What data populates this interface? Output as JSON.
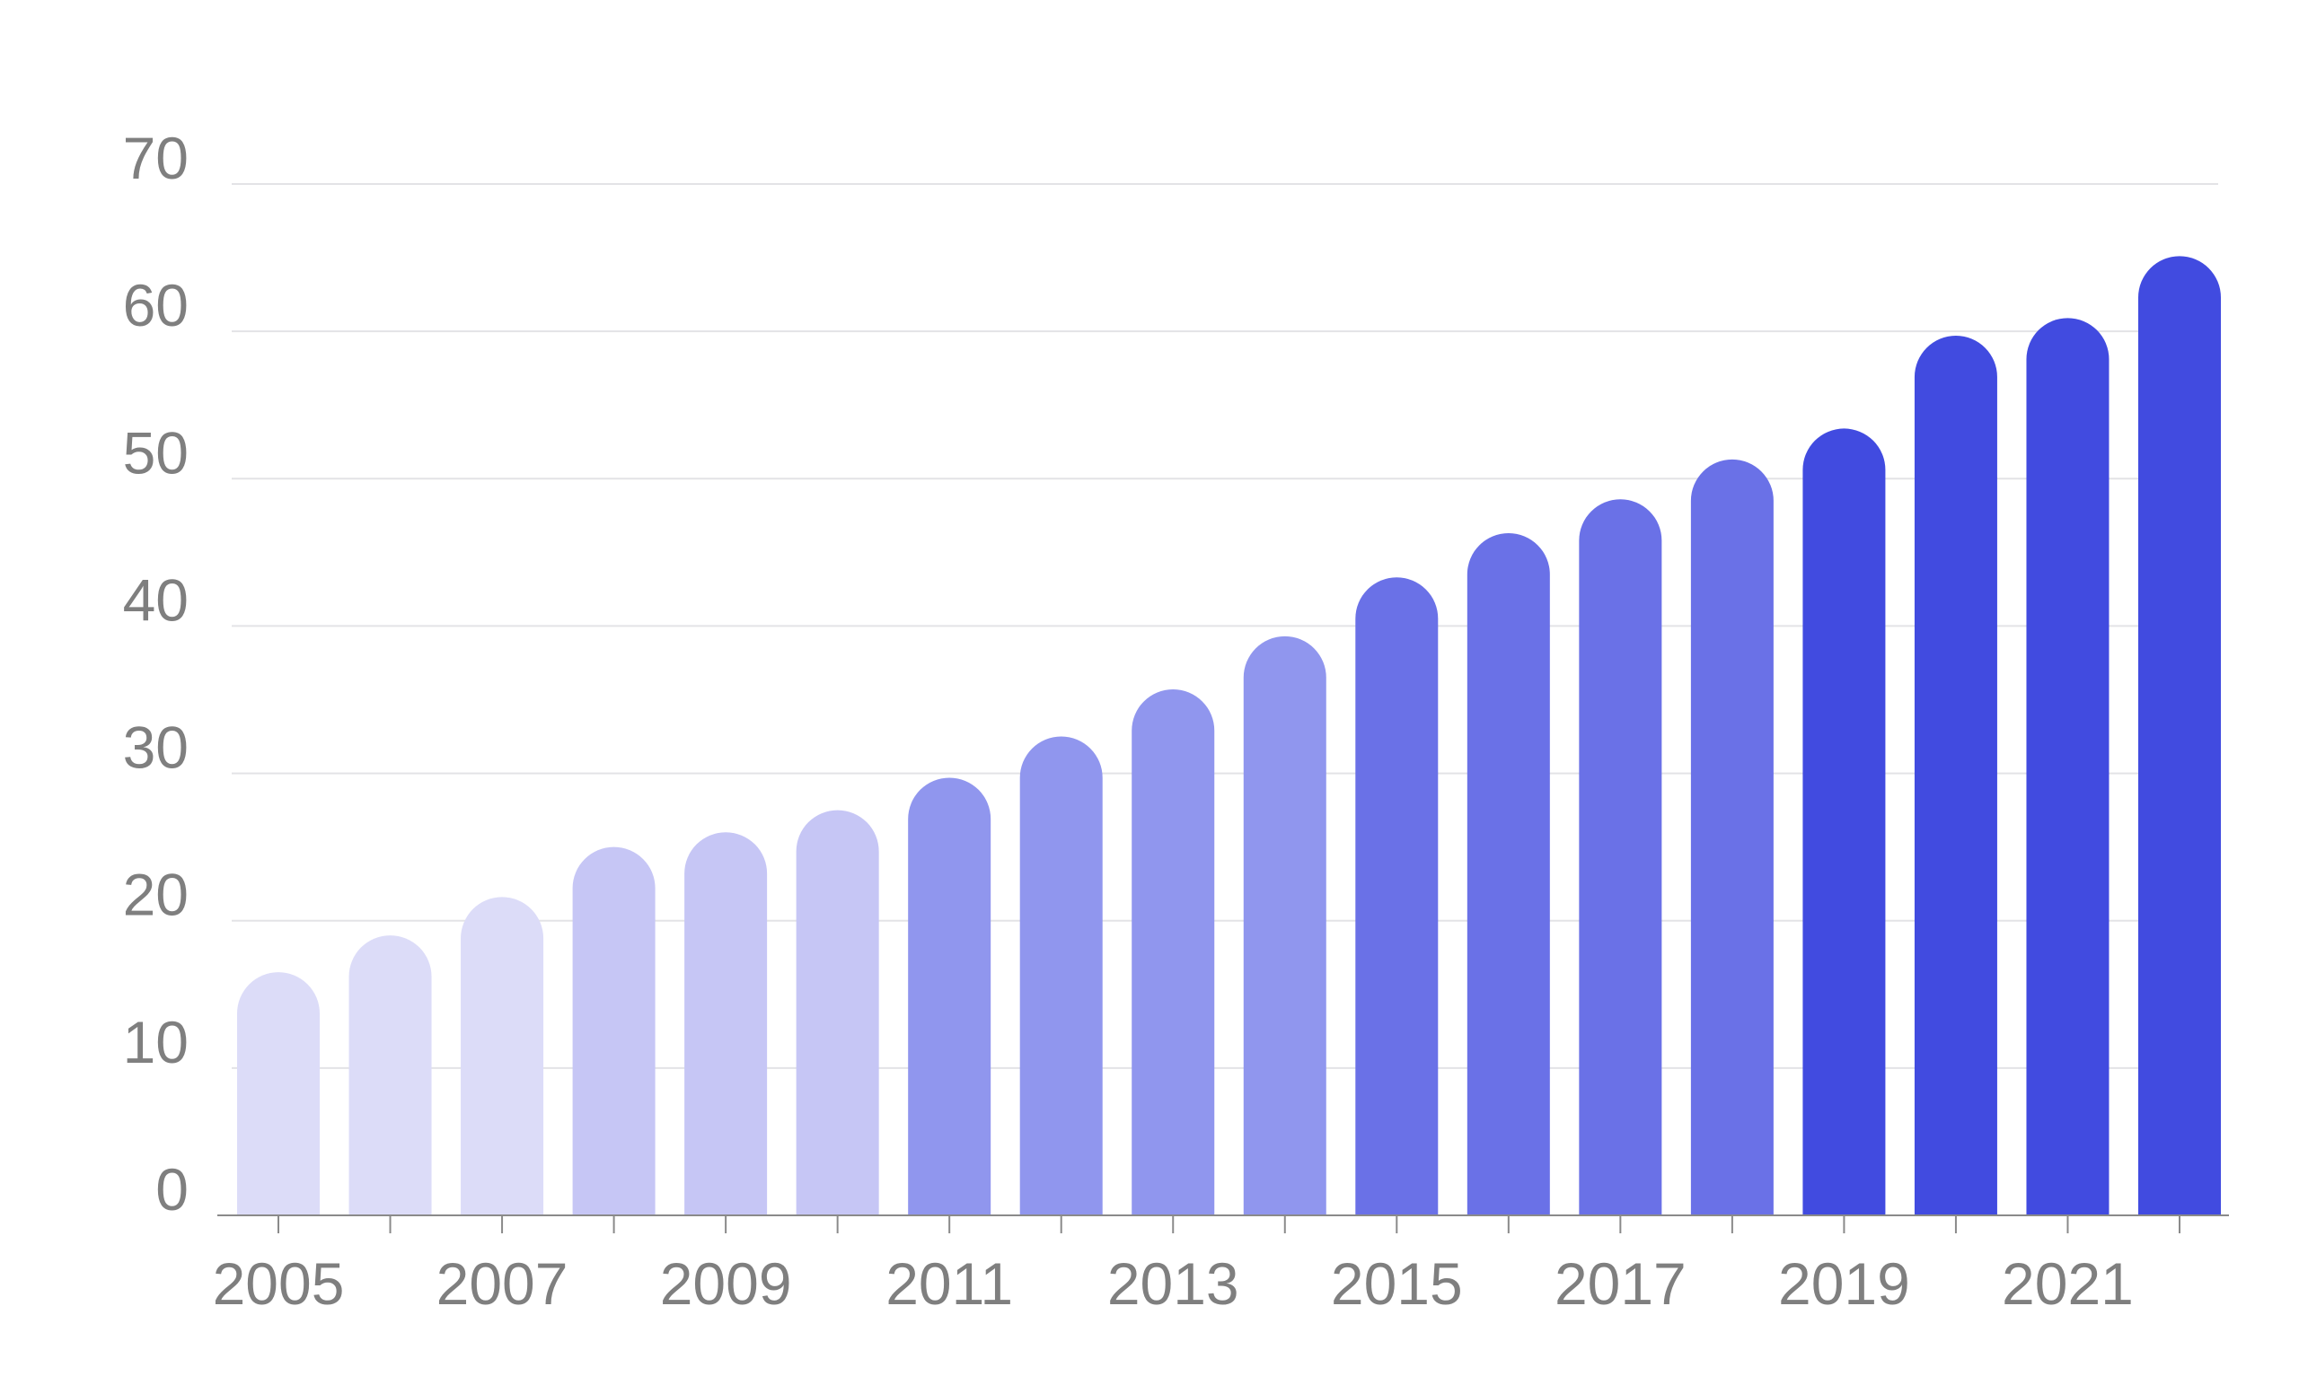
{
  "chart_data": {
    "type": "bar",
    "title": "",
    "xlabel": "",
    "ylabel": "",
    "ylim": [
      0,
      70
    ],
    "yticks": [
      0,
      10,
      20,
      30,
      40,
      50,
      60,
      70
    ],
    "grid": true,
    "legend": "none",
    "categories": [
      "2005",
      "2006",
      "2007",
      "2008",
      "2009",
      "2010",
      "2011",
      "2012",
      "2013",
      "2014",
      "2015",
      "2016",
      "2017",
      "2018",
      "2019",
      "2020",
      "2021",
      "2022"
    ],
    "x_tick_labels": [
      "2005",
      "",
      "2007",
      "",
      "2009",
      "",
      "2011",
      "",
      "2013",
      "",
      "2015",
      "",
      "2017",
      "",
      "2019",
      "",
      "2021",
      ""
    ],
    "values": [
      13.7,
      16.2,
      18.8,
      22.2,
      23.2,
      24.7,
      26.9,
      29.7,
      32.9,
      36.5,
      40.5,
      43.5,
      45.8,
      48.5,
      50.6,
      56.9,
      58.1,
      62.3
    ],
    "bar_colors": [
      "#dcdcf8",
      "#dcdcf8",
      "#dcdcf8",
      "#c6c6f5",
      "#c6c6f5",
      "#c6c6f5",
      "#9096ee",
      "#9096ee",
      "#9096ee",
      "#9096ee",
      "#6a71e7",
      "#6a71e7",
      "#6a71e7",
      "#6a71e7",
      "#414be0",
      "#414be0",
      "#414be0",
      "#414be0"
    ],
    "colors": {
      "grid": "#e3e3e6",
      "axis": "#8a8a8a",
      "label": "#7f7f7f"
    }
  }
}
